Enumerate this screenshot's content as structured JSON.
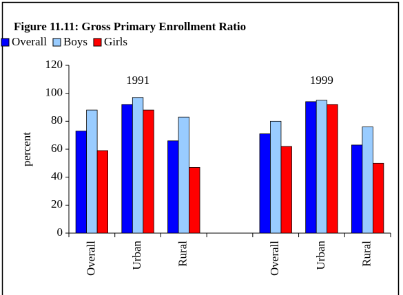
{
  "chart_data": {
    "type": "bar",
    "title": "Figure 11.11: Gross Primary Enrollment Ratio",
    "y_label": "percent",
    "annotations": [
      "1991",
      "1999"
    ],
    "categories": [
      "Overall",
      "Urban",
      "Rural",
      null,
      "Overall",
      "Urban",
      "Rural"
    ],
    "series": [
      {
        "name": "Overall",
        "color": "#0000ff",
        "values": [
          73,
          92,
          66,
          null,
          71,
          94,
          63
        ]
      },
      {
        "name": "Boys",
        "color": "#99ccff",
        "values": [
          88,
          97,
          83,
          null,
          80,
          95,
          76
        ]
      },
      {
        "name": "Girls",
        "color": "#ff0000",
        "values": [
          59,
          88,
          47,
          null,
          62,
          92,
          50
        ]
      }
    ],
    "ylim": [
      0,
      120
    ],
    "yticks": [
      0,
      20,
      40,
      60,
      80,
      100,
      120
    ],
    "grid": false
  }
}
